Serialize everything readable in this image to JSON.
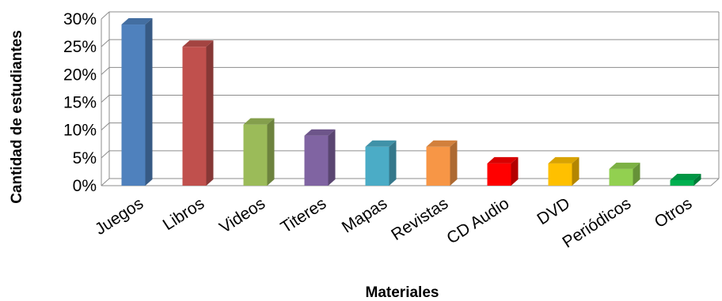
{
  "chart_data": {
    "type": "bar",
    "categories": [
      "Juegos",
      "Libros",
      "Videos",
      "Titeres",
      "Mapas",
      "Revistas",
      "CD Audio",
      "DVD",
      "Periódicos",
      "Otros"
    ],
    "values": [
      29,
      25,
      11,
      9,
      7,
      7,
      4,
      4,
      3,
      1
    ],
    "value_unit": "%",
    "ylim": [
      0,
      30
    ],
    "yticks": [
      0,
      5,
      10,
      15,
      20,
      25,
      30
    ],
    "ytick_labels": [
      "0%",
      "5%",
      "10%",
      "15%",
      "20%",
      "25%",
      "30%"
    ],
    "xlabel": "Materiales",
    "ylabel": "Cantidad de estudiantes",
    "grid": true,
    "legend": "none",
    "bar_colors": [
      "#4F81BD",
      "#C0504D",
      "#9BBB59",
      "#8064A2",
      "#4BACC6",
      "#F79646",
      "#FF0000",
      "#FFC000",
      "#92D050",
      "#00B050"
    ]
  }
}
